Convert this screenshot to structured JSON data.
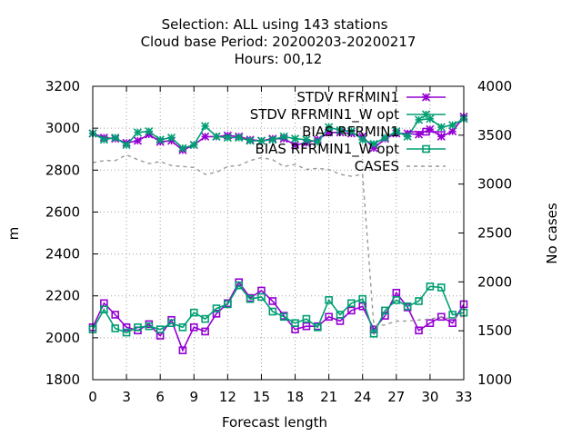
{
  "chart_data": {
    "type": "line",
    "title_lines": [
      "Selection: ALL using   143 stations",
      "Cloud base   Period: 20200203-20200217",
      "Hours:  00,12"
    ],
    "xlabel": "Forecast length",
    "ylabel": "m",
    "y2label": "No cases",
    "xlim": [
      0,
      33
    ],
    "ylim": [
      1800,
      3200
    ],
    "y2lim": [
      1000,
      4000
    ],
    "xticks": [
      0,
      3,
      6,
      9,
      12,
      15,
      18,
      21,
      24,
      27,
      30,
      33
    ],
    "yticks": [
      1800,
      2000,
      2200,
      2400,
      2600,
      2800,
      3000,
      3200
    ],
    "y2ticks": [
      1000,
      1500,
      2000,
      2500,
      3000,
      3500,
      4000
    ],
    "grid": true,
    "legend_position": "top-right",
    "x": [
      0,
      1,
      2,
      3,
      4,
      5,
      6,
      7,
      8,
      9,
      10,
      11,
      12,
      13,
      14,
      15,
      16,
      17,
      18,
      19,
      20,
      21,
      22,
      23,
      24,
      25,
      26,
      27,
      28,
      29,
      30,
      31,
      32,
      33
    ],
    "series": [
      {
        "name": "STDV RFRMIN1",
        "axis": "y",
        "color": "#9400d3",
        "marker": "x-star",
        "dash": "",
        "values": [
          2975,
          2955,
          2950,
          2930,
          2940,
          2970,
          2935,
          2940,
          2895,
          2920,
          2960,
          2960,
          2965,
          2960,
          2945,
          2940,
          2950,
          2950,
          2920,
          2930,
          2945,
          2980,
          2980,
          2975,
          2960,
          2905,
          2950,
          2975,
          2975,
          2970,
          2995,
          2960,
          2985,
          3055
        ]
      },
      {
        "name": "STDV RFRMIN1_W opt",
        "axis": "y",
        "color": "#009e73",
        "marker": "x-star",
        "dash": "",
        "values": [
          2975,
          2945,
          2955,
          2920,
          2980,
          2985,
          2945,
          2955,
          2905,
          2920,
          3010,
          2960,
          2955,
          2955,
          2940,
          2940,
          2945,
          2960,
          2950,
          2945,
          2935,
          3005,
          2990,
          2985,
          2945,
          2925,
          2955,
          2985,
          2960,
          3040,
          3045,
          3005,
          3015,
          3045
        ]
      },
      {
        "name": "BIAS RFRMIN1",
        "axis": "y",
        "color": "#9400d3",
        "marker": "square",
        "dash": "",
        "values": [
          2050,
          2165,
          2110,
          2050,
          2035,
          2065,
          2010,
          2085,
          1940,
          2050,
          2030,
          2115,
          2165,
          2265,
          2190,
          2225,
          2175,
          2105,
          2040,
          2055,
          2055,
          2100,
          2080,
          2130,
          2150,
          2040,
          2105,
          2215,
          2145,
          2035,
          2070,
          2100,
          2070,
          2160
        ]
      },
      {
        "name": "BIAS RFRMIN1_W opt",
        "axis": "y",
        "color": "#009e73",
        "marker": "square",
        "dash": "",
        "values": [
          2040,
          2135,
          2045,
          2025,
          2050,
          2055,
          2040,
          2070,
          2050,
          2120,
          2090,
          2140,
          2160,
          2250,
          2185,
          2195,
          2125,
          2100,
          2070,
          2090,
          2050,
          2180,
          2110,
          2165,
          2185,
          2020,
          2130,
          2180,
          2150,
          2175,
          2245,
          2240,
          2110,
          2120
        ]
      },
      {
        "name": "CASES",
        "axis": "y2",
        "color": "#999999",
        "marker": "none",
        "dash": "4,4",
        "values": [
          3220,
          3240,
          3240,
          3300,
          3250,
          3210,
          3230,
          3190,
          3180,
          3170,
          3100,
          3120,
          3180,
          3190,
          3240,
          3270,
          3250,
          3180,
          3200,
          3150,
          3160,
          3150,
          3100,
          3080,
          3100,
          1550,
          1560,
          1600,
          1600,
          1610,
          1620,
          1640,
          1620,
          1650
        ]
      }
    ]
  }
}
